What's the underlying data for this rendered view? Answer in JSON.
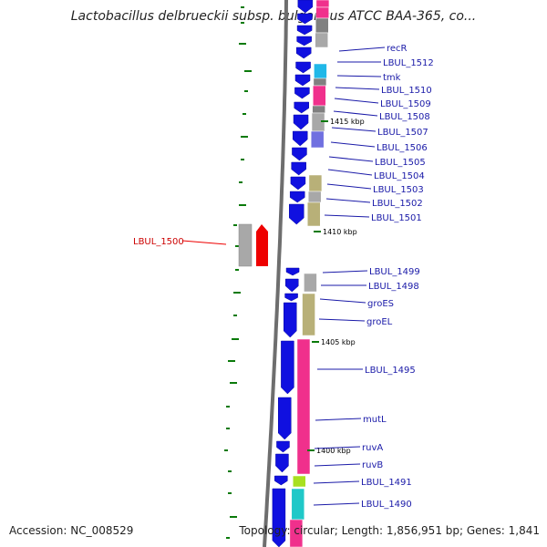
{
  "title": "Lactobacillus delbrueckii subsp. bulgaricus ATCC BAA-365, co...",
  "footer": {
    "accession": "Accession: NC_008529",
    "summary": "Topology: circular; Length: 1,856,951 bp; Genes: 1,841"
  },
  "colors": {
    "backbone": "#6e6e6e",
    "arrow": "#1010e0",
    "gc_tick": "#0a7a0a",
    "label": "#1a1aa8",
    "highlight": "#ee0000",
    "cog_pink": "#f0308c",
    "cog_gray": "#a8a8a8",
    "cog_darkgray": "#808080",
    "cog_khaki": "#b8b078",
    "cog_cyan": "#20b8e8",
    "cog_purple": "#7070e0",
    "cog_lime": "#a8e020",
    "cog_teal": "#20c8c8"
  },
  "kbp_markers": [
    {
      "text": "1415 kbp",
      "pos": 1415
    },
    {
      "text": "1410 kbp",
      "pos": 1410
    },
    {
      "text": "1405 kbp",
      "pos": 1405
    },
    {
      "text": "1400 kbp",
      "pos": 1400
    }
  ],
  "gene_labels": [
    {
      "text": "recR"
    },
    {
      "text": "LBUL_1512"
    },
    {
      "text": "tmk"
    },
    {
      "text": "LBUL_1510"
    },
    {
      "text": "LBUL_1509"
    },
    {
      "text": "LBUL_1508"
    },
    {
      "text": "LBUL_1507"
    },
    {
      "text": "LBUL_1506"
    },
    {
      "text": "LBUL_1505"
    },
    {
      "text": "LBUL_1504"
    },
    {
      "text": "LBUL_1503"
    },
    {
      "text": "LBUL_1502"
    },
    {
      "text": "LBUL_1501"
    },
    {
      "text": "LBUL_1499"
    },
    {
      "text": "LBUL_1498"
    },
    {
      "text": "groES"
    },
    {
      "text": "groEL"
    },
    {
      "text": "LBUL_1495"
    },
    {
      "text": "mutL"
    },
    {
      "text": "ruvA"
    },
    {
      "text": "ruvB"
    },
    {
      "text": "LBUL_1491"
    },
    {
      "text": "LBUL_1490"
    }
  ],
  "highlight_gene": {
    "text": "LBUL_1500"
  }
}
